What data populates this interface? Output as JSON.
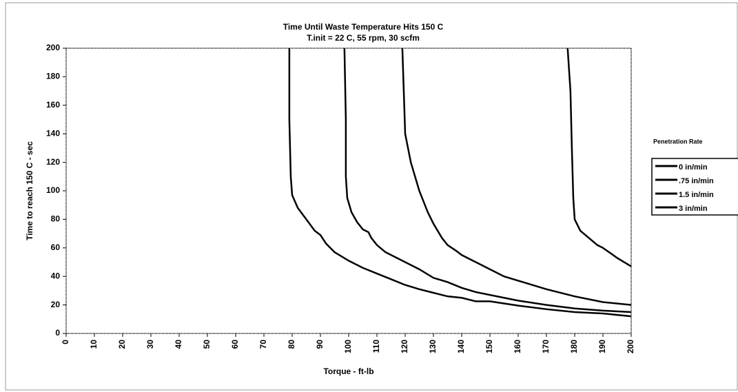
{
  "chart_data": {
    "type": "line",
    "title": "Time Until Waste Temperature Hits 150 C",
    "subtitle": "T.init = 22 C, 55 rpm, 30 scfm",
    "x_label": "Torque  -  ft-lb",
    "y_label": "Time to reach 150 C - sec",
    "legend_title": "Penetration Rate",
    "legend": "right",
    "xlim": [
      0,
      200
    ],
    "ylim": [
      0,
      200
    ],
    "xticks": [
      0,
      10,
      20,
      30,
      40,
      50,
      60,
      70,
      80,
      90,
      100,
      110,
      120,
      130,
      140,
      150,
      160,
      170,
      180,
      190,
      200
    ],
    "yticks": [
      0,
      20,
      40,
      60,
      80,
      100,
      120,
      140,
      160,
      180,
      200
    ],
    "series": [
      {
        "name": "0  in/min",
        "color": "#000000",
        "x": [
          79,
          79,
          79.5,
          80,
          82,
          85,
          88,
          90,
          92,
          95,
          100,
          105,
          110,
          115,
          120,
          125,
          130,
          135,
          140,
          145,
          150,
          155,
          160,
          170,
          180,
          190,
          200
        ],
        "values": [
          200,
          150,
          110,
          97,
          88,
          80,
          72,
          69,
          63,
          57,
          51,
          46,
          42,
          38,
          34,
          31,
          28.5,
          26,
          25,
          22.5,
          22.5,
          21,
          19.5,
          17,
          15,
          14,
          12
        ]
      },
      {
        "name": ".75  in/min",
        "color": "#000000",
        "x": [
          98.5,
          99,
          99,
          99.5,
          101,
          103,
          105,
          107,
          108,
          110,
          113,
          117,
          120,
          125,
          130,
          135,
          140,
          145,
          150,
          160,
          170,
          180,
          190,
          200
        ],
        "values": [
          200,
          150,
          110,
          95,
          85,
          78,
          73,
          71,
          67,
          62,
          57,
          53,
          50,
          45,
          39,
          36,
          32,
          29,
          27,
          23,
          20,
          17.5,
          16,
          15
        ]
      },
      {
        "name": "1.5  in/min",
        "color": "#000000",
        "x": [
          119,
          119.5,
          120,
          122,
          125,
          128,
          130,
          133,
          135,
          138,
          140,
          145,
          150,
          155,
          160,
          170,
          180,
          190,
          200
        ],
        "values": [
          200,
          170,
          140,
          120,
          100,
          85,
          77,
          67,
          62,
          58,
          55,
          50,
          45,
          40,
          37,
          31,
          26,
          22,
          20
        ]
      },
      {
        "name": "3  in/min",
        "color": "#000000",
        "x": [
          177.5,
          178.5,
          179,
          179.5,
          180,
          182,
          185,
          188,
          190,
          195,
          200
        ],
        "values": [
          200,
          170,
          130,
          95,
          80,
          72,
          67,
          62,
          60,
          53,
          47
        ]
      }
    ]
  }
}
